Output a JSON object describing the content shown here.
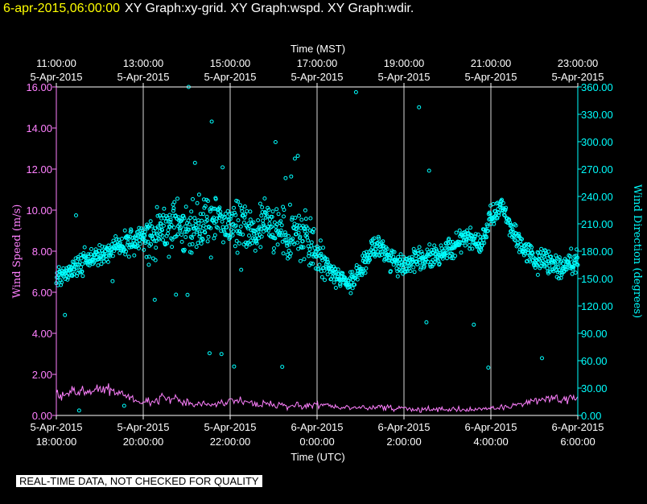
{
  "header": {
    "timestamp": "6-apr-2015,06:00:00",
    "title": "XY Graph:xy-grid.  XY Graph:wspd.  XY Graph:wdir."
  },
  "footer": {
    "quality_note": "REAL-TIME DATA, NOT CHECKED FOR QUALITY"
  },
  "colors": {
    "wind_speed": "#ff80ff",
    "wind_direction": "#00ffff",
    "grid": "#ffffff",
    "header_time": "#ffff00"
  },
  "chart_data": {
    "type": "scatter",
    "top_axis": {
      "label": "Time (MST)",
      "ticks": [
        {
          "time": "11:00:00",
          "date": "5-Apr-2015"
        },
        {
          "time": "13:00:00",
          "date": "5-Apr-2015"
        },
        {
          "time": "15:00:00",
          "date": "5-Apr-2015"
        },
        {
          "time": "17:00:00",
          "date": "5-Apr-2015"
        },
        {
          "time": "19:00:00",
          "date": "5-Apr-2015"
        },
        {
          "time": "21:00:00",
          "date": "5-Apr-2015"
        },
        {
          "time": "23:00:00",
          "date": "5-Apr-2015"
        }
      ]
    },
    "bottom_axis": {
      "label": "Time (UTC)",
      "xlim": [
        "2015-04-05T18:00:00Z",
        "2015-04-06T06:00:00Z"
      ],
      "ticks": [
        {
          "date": "5-Apr-2015",
          "time": "18:00:00"
        },
        {
          "date": "5-Apr-2015",
          "time": "20:00:00"
        },
        {
          "date": "5-Apr-2015",
          "time": "22:00:00"
        },
        {
          "date": "6-Apr-2015",
          "time": "0:00:00"
        },
        {
          "date": "6-Apr-2015",
          "time": "2:00:00"
        },
        {
          "date": "6-Apr-2015",
          "time": "4:00:00"
        },
        {
          "date": "6-Apr-2015",
          "time": "6:00:00"
        }
      ]
    },
    "left_axis": {
      "label": "Wind Speed (m/s)",
      "ylim": [
        0,
        16
      ],
      "ticks": [
        "0.00",
        "2.00",
        "4.00",
        "6.00",
        "8.00",
        "10.00",
        "12.00",
        "14.00",
        "16.00"
      ]
    },
    "right_axis": {
      "label": "Wind Direction (degrees)",
      "ylim": [
        0,
        360
      ],
      "ticks": [
        "0.00",
        "30.00",
        "60.00",
        "90.00",
        "120.00",
        "150.00",
        "180.00",
        "210.00",
        "240.00",
        "270.00",
        "300.00",
        "330.00",
        "360.00"
      ]
    },
    "grid": "vertical",
    "series": [
      {
        "name": "Wind Speed",
        "axis": "left",
        "style": "line",
        "x_hours_utc": [
          18.0,
          18.5,
          19.0,
          19.5,
          20.0,
          20.5,
          21.0,
          21.5,
          22.0,
          22.5,
          23.0,
          23.5,
          24.0,
          24.5,
          25.0,
          25.5,
          26.0,
          26.5,
          27.0,
          27.5,
          28.0,
          28.5,
          29.0,
          29.5,
          30.0
        ],
        "values": [
          1.0,
          1.1,
          1.2,
          1.1,
          0.6,
          0.9,
          0.6,
          0.5,
          0.7,
          0.6,
          0.5,
          0.5,
          0.5,
          0.4,
          0.4,
          0.4,
          0.3,
          0.3,
          0.3,
          0.3,
          0.3,
          0.5,
          0.7,
          0.8,
          0.9
        ]
      },
      {
        "name": "Wind Direction",
        "axis": "right",
        "style": "points",
        "x_hours_utc": [
          18.0,
          18.25,
          18.5,
          18.75,
          19.0,
          19.25,
          19.5,
          19.75,
          20.0,
          20.25,
          20.5,
          20.75,
          21.0,
          21.25,
          21.5,
          21.75,
          22.0,
          22.25,
          22.5,
          22.75,
          23.0,
          23.25,
          23.5,
          23.75,
          24.0,
          24.25,
          24.5,
          24.75,
          25.0,
          25.25,
          25.5,
          25.75,
          26.0,
          26.25,
          26.5,
          26.75,
          27.0,
          27.25,
          27.5,
          27.75,
          28.0,
          28.25,
          28.5,
          28.75,
          29.0,
          29.25,
          29.5,
          29.75,
          30.0
        ],
        "values": [
          150,
          160,
          165,
          170,
          175,
          180,
          185,
          190,
          195,
          200,
          205,
          210,
          200,
          205,
          210,
          215,
          210,
          205,
          200,
          210,
          205,
          200,
          200,
          195,
          175,
          165,
          150,
          145,
          160,
          185,
          180,
          170,
          165,
          170,
          170,
          175,
          180,
          190,
          195,
          185,
          215,
          230,
          200,
          185,
          170,
          170,
          165,
          165,
          170
        ]
      }
    ]
  }
}
